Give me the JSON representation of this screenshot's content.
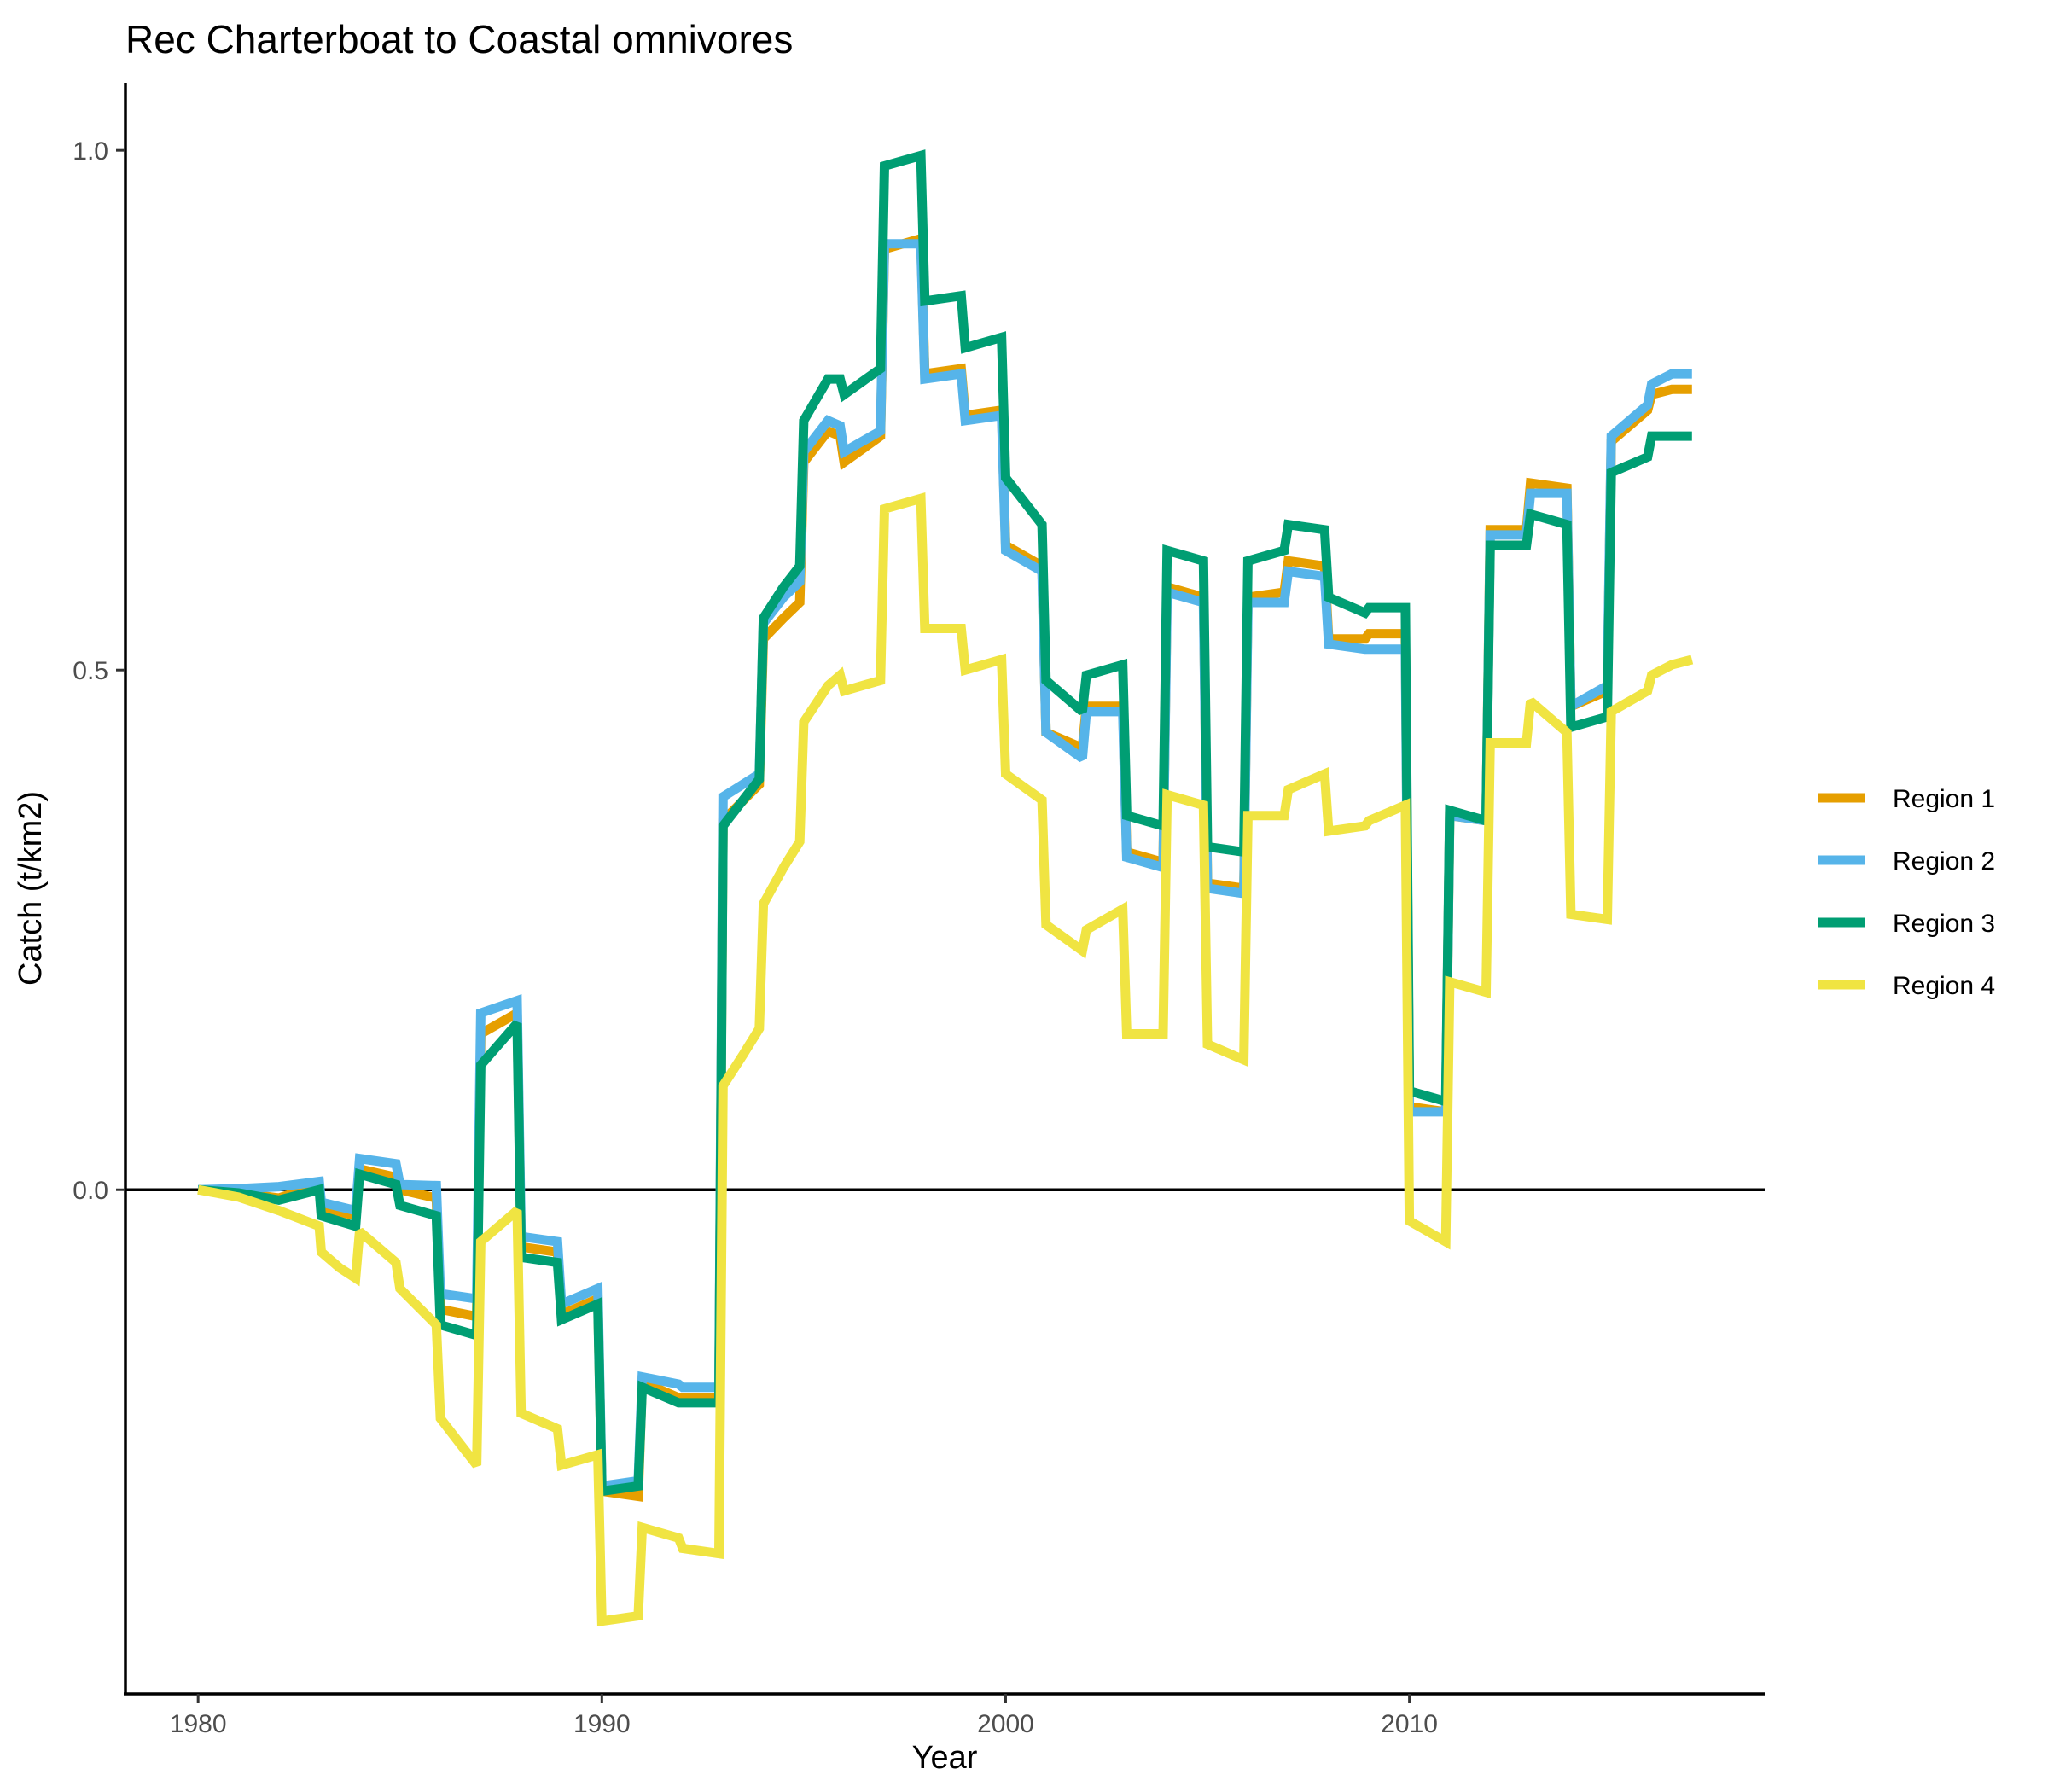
{
  "chart_data": {
    "type": "line",
    "title": "Rec Charterboat to Coastal omnivores",
    "xlabel": "Year",
    "ylabel": "Catch (t/km2)",
    "xlim": [
      1978.2,
      2018.8
    ],
    "ylim": [
      -0.485,
      1.065
    ],
    "xticks": [
      1980,
      1990,
      2000,
      2010
    ],
    "xtick_labels": [
      "1980",
      "1990",
      "2000",
      "2010"
    ],
    "yticks": [
      0.0,
      0.5,
      1.0
    ],
    "ytick_labels": [
      "0.0",
      "0.5",
      "1.0"
    ],
    "zero_line": true,
    "grid": false,
    "legend_position": "right",
    "series": [
      {
        "name": "Region 1",
        "color": "#E69F00",
        "points": [
          [
            1980,
            0
          ],
          [
            1981,
            -0.003
          ],
          [
            1982,
            -0.008
          ],
          [
            1983,
            0.005
          ],
          [
            1983.05,
            -0.017
          ],
          [
            1983.9,
            -0.025
          ],
          [
            1984,
            0.02
          ],
          [
            1984.9,
            0.012
          ],
          [
            1985,
            0
          ],
          [
            1985.9,
            -0.008
          ],
          [
            1986,
            -0.115
          ],
          [
            1986.9,
            -0.122
          ],
          [
            1987,
            0.15
          ],
          [
            1987.9,
            0.17
          ],
          [
            1988,
            -0.055
          ],
          [
            1988.9,
            -0.06
          ],
          [
            1989,
            -0.12
          ],
          [
            1989.9,
            -0.105
          ],
          [
            1990,
            -0.29
          ],
          [
            1990.9,
            -0.295
          ],
          [
            1991,
            -0.185
          ],
          [
            1991.9,
            -0.2
          ],
          [
            1992,
            -0.2
          ],
          [
            1992.9,
            -0.2
          ],
          [
            1993,
            0.355
          ],
          [
            1993.9,
            0.39
          ],
          [
            1994,
            0.53
          ],
          [
            1994.5,
            0.55
          ],
          [
            1994.9,
            0.565
          ],
          [
            1995,
            0.7
          ],
          [
            1995.6,
            0.73
          ],
          [
            1995.9,
            0.725
          ],
          [
            1996,
            0.7
          ],
          [
            1996.9,
            0.725
          ],
          [
            1997,
            0.905
          ],
          [
            1997.9,
            0.915
          ],
          [
            1998,
            0.785
          ],
          [
            1998.9,
            0.79
          ],
          [
            1999,
            0.745
          ],
          [
            1999.9,
            0.75
          ],
          [
            2000,
            0.62
          ],
          [
            2000.9,
            0.6
          ],
          [
            2001,
            0.44
          ],
          [
            2001.9,
            0.425
          ],
          [
            2002,
            0.465
          ],
          [
            2002.9,
            0.465
          ],
          [
            2003,
            0.325
          ],
          [
            2003.9,
            0.315
          ],
          [
            2004,
            0.58
          ],
          [
            2004.9,
            0.57
          ],
          [
            2005,
            0.295
          ],
          [
            2005.9,
            0.29
          ],
          [
            2006,
            0.57
          ],
          [
            2006.9,
            0.575
          ],
          [
            2007,
            0.605
          ],
          [
            2007.9,
            0.6
          ],
          [
            2008,
            0.53
          ],
          [
            2008.9,
            0.53
          ],
          [
            2009,
            0.535
          ],
          [
            2009.9,
            0.535
          ],
          [
            2010,
            0.08
          ],
          [
            2010.9,
            0.075
          ],
          [
            2011,
            0.36
          ],
          [
            2011.9,
            0.355
          ],
          [
            2012,
            0.635
          ],
          [
            2012.9,
            0.635
          ],
          [
            2013,
            0.68
          ],
          [
            2013.9,
            0.675
          ],
          [
            2014,
            0.465
          ],
          [
            2014.9,
            0.48
          ],
          [
            2015,
            0.72
          ],
          [
            2015.9,
            0.75
          ],
          [
            2016,
            0.765
          ],
          [
            2016.5,
            0.77
          ],
          [
            2017,
            0.77
          ]
        ]
      },
      {
        "name": "Region 2",
        "color": "#56B4E9",
        "points": [
          [
            1980,
            0
          ],
          [
            1981,
            0.001
          ],
          [
            1982,
            0.003
          ],
          [
            1983,
            0.008
          ],
          [
            1983.05,
            -0.012
          ],
          [
            1983.9,
            -0.02
          ],
          [
            1984,
            0.03
          ],
          [
            1984.9,
            0.025
          ],
          [
            1985,
            0.005
          ],
          [
            1985.9,
            0.004
          ],
          [
            1986,
            -0.1
          ],
          [
            1986.9,
            -0.105
          ],
          [
            1987,
            0.17
          ],
          [
            1987.9,
            0.182
          ],
          [
            1988,
            -0.045
          ],
          [
            1988.9,
            -0.05
          ],
          [
            1989,
            -0.11
          ],
          [
            1989.9,
            -0.095
          ],
          [
            1990,
            -0.285
          ],
          [
            1990.9,
            -0.28
          ],
          [
            1991,
            -0.18
          ],
          [
            1991.9,
            -0.187
          ],
          [
            1992,
            -0.19
          ],
          [
            1992.9,
            -0.19
          ],
          [
            1993,
            0.378
          ],
          [
            1993.9,
            0.4
          ],
          [
            1994,
            0.545
          ],
          [
            1994.5,
            0.57
          ],
          [
            1994.9,
            0.585
          ],
          [
            1995,
            0.71
          ],
          [
            1995.6,
            0.74
          ],
          [
            1995.9,
            0.735
          ],
          [
            1996,
            0.71
          ],
          [
            1996.9,
            0.73
          ],
          [
            1997,
            0.91
          ],
          [
            1997.9,
            0.91
          ],
          [
            1998,
            0.78
          ],
          [
            1998.9,
            0.785
          ],
          [
            1999,
            0.74
          ],
          [
            1999.9,
            0.745
          ],
          [
            2000,
            0.615
          ],
          [
            2000.9,
            0.595
          ],
          [
            2001,
            0.44
          ],
          [
            2001.9,
            0.415
          ],
          [
            2002,
            0.46
          ],
          [
            2002.9,
            0.46
          ],
          [
            2003,
            0.32
          ],
          [
            2003.9,
            0.31
          ],
          [
            2004,
            0.575
          ],
          [
            2004.9,
            0.565
          ],
          [
            2005,
            0.29
          ],
          [
            2005.9,
            0.285
          ],
          [
            2006,
            0.565
          ],
          [
            2006.9,
            0.565
          ],
          [
            2007,
            0.595
          ],
          [
            2007.9,
            0.59
          ],
          [
            2008,
            0.525
          ],
          [
            2008.9,
            0.52
          ],
          [
            2009,
            0.52
          ],
          [
            2009.9,
            0.52
          ],
          [
            2010,
            0.075
          ],
          [
            2010.9,
            0.075
          ],
          [
            2011,
            0.36
          ],
          [
            2011.9,
            0.355
          ],
          [
            2012,
            0.63
          ],
          [
            2012.9,
            0.63
          ],
          [
            2013,
            0.67
          ],
          [
            2013.9,
            0.67
          ],
          [
            2014,
            0.465
          ],
          [
            2014.9,
            0.485
          ],
          [
            2015,
            0.725
          ],
          [
            2015.9,
            0.755
          ],
          [
            2016,
            0.775
          ],
          [
            2016.5,
            0.785
          ],
          [
            2017,
            0.785
          ]
        ]
      },
      {
        "name": "Region 3",
        "color": "#009E73",
        "points": [
          [
            1980,
            0
          ],
          [
            1981,
            -0.003
          ],
          [
            1982,
            -0.01
          ],
          [
            1983,
            0
          ],
          [
            1983.05,
            -0.025
          ],
          [
            1983.9,
            -0.035
          ],
          [
            1984,
            0.015
          ],
          [
            1984.9,
            0.005
          ],
          [
            1985,
            -0.015
          ],
          [
            1985.9,
            -0.025
          ],
          [
            1986,
            -0.13
          ],
          [
            1986.9,
            -0.14
          ],
          [
            1987,
            0.12
          ],
          [
            1987.9,
            0.16
          ],
          [
            1988,
            -0.065
          ],
          [
            1988.9,
            -0.07
          ],
          [
            1989,
            -0.125
          ],
          [
            1989.9,
            -0.11
          ],
          [
            1990,
            -0.29
          ],
          [
            1990.9,
            -0.285
          ],
          [
            1991,
            -0.19
          ],
          [
            1991.9,
            -0.205
          ],
          [
            1992,
            -0.205
          ],
          [
            1992.9,
            -0.205
          ],
          [
            1993,
            0.35
          ],
          [
            1993.9,
            0.395
          ],
          [
            1994,
            0.55
          ],
          [
            1994.5,
            0.58
          ],
          [
            1994.9,
            0.6
          ],
          [
            1995,
            0.74
          ],
          [
            1995.6,
            0.78
          ],
          [
            1995.9,
            0.78
          ],
          [
            1996,
            0.765
          ],
          [
            1996.9,
            0.79
          ],
          [
            1997,
            0.985
          ],
          [
            1997.9,
            0.995
          ],
          [
            1998,
            0.855
          ],
          [
            1998.9,
            0.86
          ],
          [
            1999,
            0.81
          ],
          [
            1999.9,
            0.82
          ],
          [
            2000,
            0.685
          ],
          [
            2000.9,
            0.64
          ],
          [
            2001,
            0.49
          ],
          [
            2001.9,
            0.46
          ],
          [
            2002,
            0.495
          ],
          [
            2002.9,
            0.505
          ],
          [
            2003,
            0.36
          ],
          [
            2003.9,
            0.35
          ],
          [
            2004,
            0.615
          ],
          [
            2004.9,
            0.605
          ],
          [
            2005,
            0.33
          ],
          [
            2005.9,
            0.325
          ],
          [
            2006,
            0.605
          ],
          [
            2006.9,
            0.615
          ],
          [
            2007,
            0.64
          ],
          [
            2007.9,
            0.635
          ],
          [
            2008,
            0.57
          ],
          [
            2008.9,
            0.555
          ],
          [
            2009,
            0.56
          ],
          [
            2009.9,
            0.56
          ],
          [
            2010,
            0.095
          ],
          [
            2010.9,
            0.085
          ],
          [
            2011,
            0.365
          ],
          [
            2011.9,
            0.355
          ],
          [
            2012,
            0.62
          ],
          [
            2012.9,
            0.62
          ],
          [
            2013,
            0.65
          ],
          [
            2013.9,
            0.64
          ],
          [
            2014,
            0.445
          ],
          [
            2014.9,
            0.455
          ],
          [
            2015,
            0.69
          ],
          [
            2015.9,
            0.705
          ],
          [
            2016,
            0.725
          ],
          [
            2016.5,
            0.725
          ],
          [
            2017,
            0.725
          ]
        ]
      },
      {
        "name": "Region 4",
        "color": "#F0E442",
        "points": [
          [
            1980,
            0
          ],
          [
            1981,
            -0.007
          ],
          [
            1982,
            -0.02
          ],
          [
            1983,
            -0.035
          ],
          [
            1983.05,
            -0.06
          ],
          [
            1983.5,
            -0.075
          ],
          [
            1983.9,
            -0.085
          ],
          [
            1984,
            -0.04
          ],
          [
            1984.9,
            -0.07
          ],
          [
            1985,
            -0.095
          ],
          [
            1985.9,
            -0.13
          ],
          [
            1986,
            -0.22
          ],
          [
            1986.5,
            -0.245
          ],
          [
            1986.9,
            -0.265
          ],
          [
            1987,
            -0.05
          ],
          [
            1987.9,
            -0.02
          ],
          [
            1988,
            -0.215
          ],
          [
            1988.9,
            -0.23
          ],
          [
            1989,
            -0.265
          ],
          [
            1989.9,
            -0.255
          ],
          [
            1990,
            -0.415
          ],
          [
            1990.9,
            -0.41
          ],
          [
            1991,
            -0.325
          ],
          [
            1991.9,
            -0.335
          ],
          [
            1992,
            -0.345
          ],
          [
            1992.9,
            -0.35
          ],
          [
            1993,
            0.1
          ],
          [
            1993.5,
            0.13
          ],
          [
            1993.9,
            0.155
          ],
          [
            1994,
            0.275
          ],
          [
            1994.5,
            0.31
          ],
          [
            1994.9,
            0.335
          ],
          [
            1995,
            0.45
          ],
          [
            1995.6,
            0.485
          ],
          [
            1995.9,
            0.495
          ],
          [
            1996,
            0.48
          ],
          [
            1996.9,
            0.49
          ],
          [
            1997,
            0.655
          ],
          [
            1997.9,
            0.665
          ],
          [
            1998,
            0.54
          ],
          [
            1998.9,
            0.54
          ],
          [
            1999,
            0.5
          ],
          [
            1999.9,
            0.51
          ],
          [
            2000,
            0.4
          ],
          [
            2000.9,
            0.375
          ],
          [
            2001,
            0.255
          ],
          [
            2001.9,
            0.23
          ],
          [
            2002,
            0.25
          ],
          [
            2002.9,
            0.27
          ],
          [
            2003,
            0.15
          ],
          [
            2003.9,
            0.15
          ],
          [
            2004,
            0.38
          ],
          [
            2004.9,
            0.37
          ],
          [
            2005,
            0.14
          ],
          [
            2005.9,
            0.125
          ],
          [
            2006,
            0.36
          ],
          [
            2006.9,
            0.36
          ],
          [
            2007,
            0.385
          ],
          [
            2007.9,
            0.4
          ],
          [
            2008,
            0.345
          ],
          [
            2008.9,
            0.35
          ],
          [
            2009,
            0.355
          ],
          [
            2009.9,
            0.37
          ],
          [
            2010,
            -0.03
          ],
          [
            2010.9,
            -0.05
          ],
          [
            2011,
            0.2
          ],
          [
            2011.9,
            0.19
          ],
          [
            2012,
            0.43
          ],
          [
            2012.9,
            0.43
          ],
          [
            2013,
            0.47
          ],
          [
            2013.9,
            0.44
          ],
          [
            2014,
            0.265
          ],
          [
            2014.9,
            0.26
          ],
          [
            2015,
            0.46
          ],
          [
            2015.9,
            0.48
          ],
          [
            2016,
            0.495
          ],
          [
            2016.5,
            0.505
          ],
          [
            2017,
            0.51
          ]
        ]
      }
    ]
  }
}
